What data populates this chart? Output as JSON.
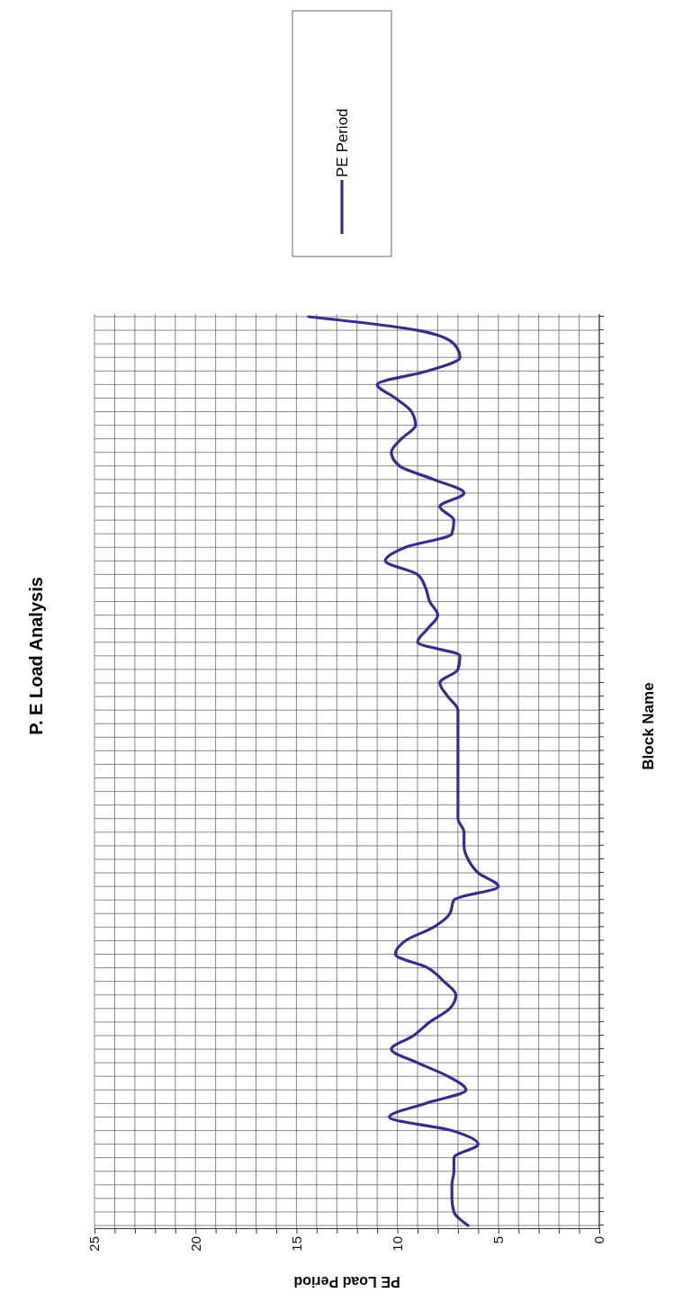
{
  "chart_data": {
    "type": "line",
    "orientation": "horizontal",
    "title": "P. E Load Analysis",
    "xlabel": "PE Load Period",
    "ylabel": "Block Name",
    "categories": [
      null,
      null,
      null,
      null,
      null,
      null,
      null,
      null,
      null,
      null,
      null,
      null,
      null,
      null,
      null,
      null,
      null,
      null,
      null,
      null,
      null,
      null,
      null,
      null,
      null,
      null,
      null,
      null,
      null,
      null,
      null,
      null,
      null,
      null,
      null,
      null,
      null,
      null,
      null,
      null,
      null,
      null,
      null,
      null,
      null,
      null,
      null,
      null,
      null,
      null,
      null,
      null,
      null,
      null,
      null,
      null,
      null,
      null,
      null,
      null,
      null,
      null,
      null,
      null,
      null,
      null,
      null,
      null
    ],
    "series": [
      {
        "name": "PE Period",
        "color": "#34308a",
        "values": [
          14.4,
          9.0,
          7.2,
          6.9,
          8.5,
          11.0,
          10.1,
          9.3,
          9.1,
          9.8,
          10.3,
          9.9,
          8.2,
          6.7,
          7.9,
          7.2,
          7.3,
          9.6,
          10.6,
          9.0,
          8.6,
          8.4,
          8.0,
          8.5,
          9.0,
          6.9,
          7.0,
          7.9,
          7.5,
          7.0,
          7.0,
          7.0,
          7.0,
          7.0,
          7.0,
          7.0,
          7.0,
          7.0,
          6.7,
          6.7,
          6.5,
          6.0,
          5.0,
          7.2,
          7.4,
          8.2,
          9.6,
          10.1,
          8.5,
          7.7,
          7.1,
          7.4,
          8.4,
          9.2,
          10.3,
          9.0,
          7.5,
          6.6,
          8.6,
          10.4,
          7.3,
          6.0,
          7.2,
          7.2,
          7.3,
          7.3,
          7.2,
          6.5
        ]
      }
    ],
    "xlim": [
      25,
      0
    ],
    "xticks": [
      25,
      {
        "value": 24,
        "label": null
      },
      {
        "value": 23,
        "label": null
      },
      {
        "value": 22,
        "label": null
      },
      {
        "value": 21,
        "label": null
      },
      20,
      {
        "value": 19,
        "label": null
      },
      {
        "value": 18,
        "label": null
      },
      {
        "value": 17,
        "label": null
      },
      {
        "value": 16,
        "label": null
      },
      15,
      {
        "value": 14,
        "label": null
      },
      {
        "value": 13,
        "label": null
      },
      {
        "value": 12,
        "label": null
      },
      {
        "value": 11,
        "label": null
      },
      10,
      {
        "value": 9,
        "label": null
      },
      {
        "value": 8,
        "label": null
      },
      {
        "value": 7,
        "label": null
      },
      {
        "value": 6,
        "label": null
      },
      5,
      {
        "value": 4,
        "label": null
      },
      {
        "value": 3,
        "label": null
      },
      {
        "value": 2,
        "label": null
      },
      {
        "value": 1,
        "label": null
      },
      0
    ],
    "grid": true,
    "legend": "top",
    "marker": "none",
    "line_style": "solid"
  }
}
